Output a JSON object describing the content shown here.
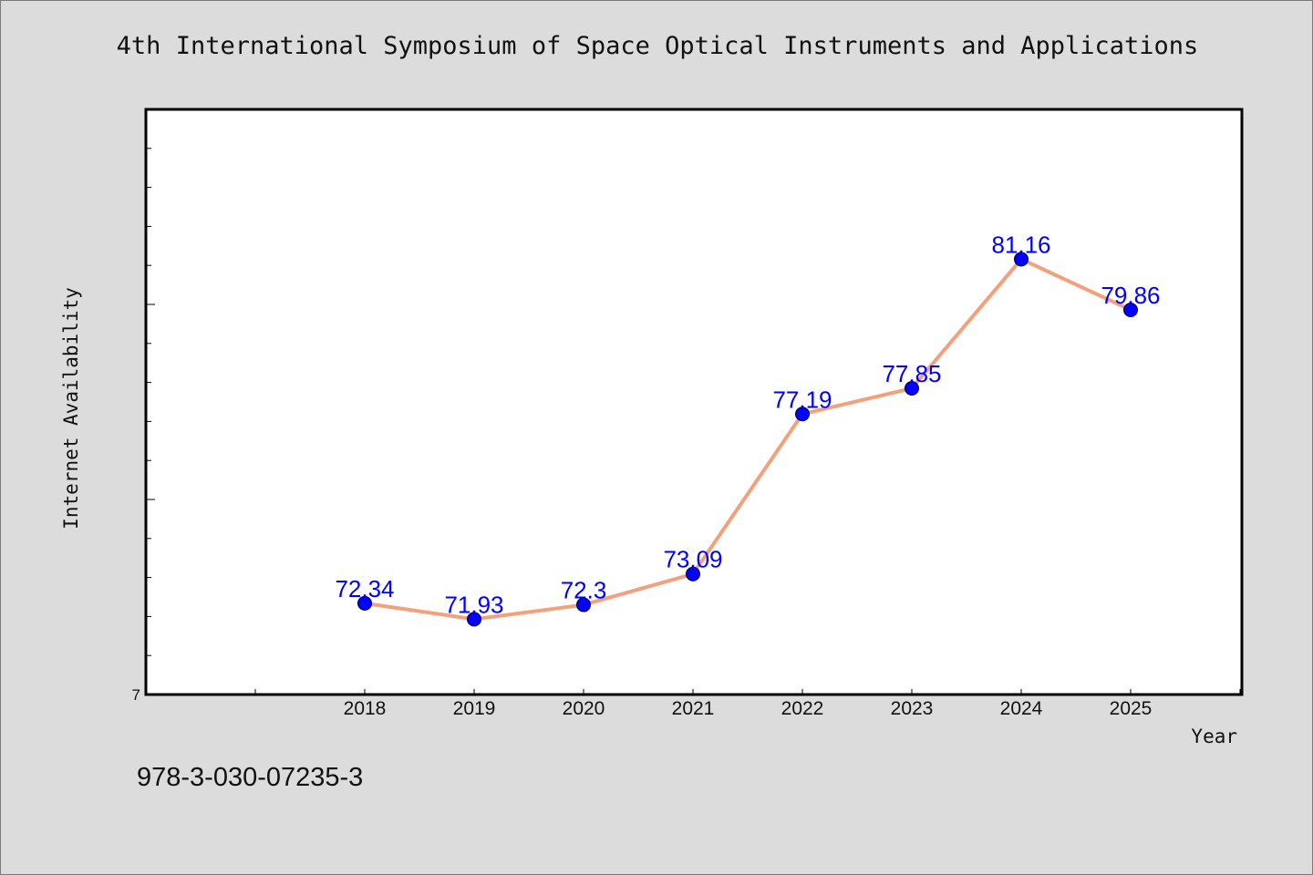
{
  "chart_data": {
    "type": "line",
    "title": "4th International Symposium of Space Optical Instruments and Applications",
    "xlabel": "Year",
    "ylabel": "Internet Availability",
    "x": [
      "2018",
      "2019",
      "2020",
      "2021",
      "2022",
      "2023",
      "2024",
      "2025"
    ],
    "series": [
      {
        "values": [
          72.34,
          71.93,
          72.3,
          73.09,
          77.19,
          77.85,
          81.16,
          79.86
        ],
        "line_color": "#f4a07a",
        "marker_color": "#0000ff"
      }
    ],
    "data_labels": [
      "72.34",
      "71.93",
      "72.3",
      "73.09",
      "77.19",
      "77.85",
      "81.16",
      "79.86"
    ],
    "y_tick_labels": [
      "7"
    ],
    "ylim": [
      70,
      85
    ],
    "grid": false,
    "legend": "none",
    "label_color": "#0000ff"
  },
  "footer": {
    "id": "978-3-030-07235-3"
  }
}
